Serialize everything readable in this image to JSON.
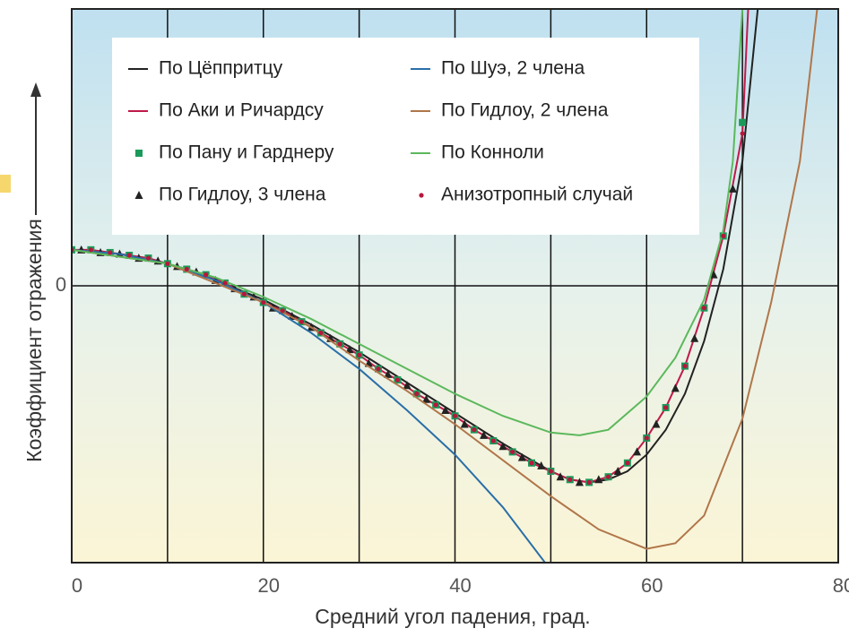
{
  "chart_data": {
    "type": "line",
    "xlabel": "Средний угол падения, град.",
    "ylabel": "Коэффициент отражения",
    "xlim": [
      0,
      80
    ],
    "xticks": [
      0,
      20,
      40,
      60,
      80
    ],
    "xgrid": [
      10,
      30,
      50,
      70
    ],
    "ylim": [
      -1,
      1
    ],
    "yticks": [
      0
    ],
    "grid": true,
    "series": [
      {
        "name": "По Цёппритцу",
        "color": "#222222",
        "marker": "line",
        "x": [
          0,
          5,
          10,
          15,
          20,
          25,
          30,
          35,
          40,
          45,
          50,
          52,
          54,
          56,
          58,
          60,
          62,
          64,
          66,
          68,
          70,
          71.6
        ],
        "values": [
          0.13,
          0.115,
          0.08,
          0.02,
          -0.05,
          -0.14,
          -0.24,
          -0.35,
          -0.46,
          -0.57,
          -0.67,
          -0.7,
          -0.71,
          -0.7,
          -0.67,
          -0.61,
          -0.52,
          -0.39,
          -0.2,
          0.06,
          0.45,
          1.0
        ]
      },
      {
        "name": "По Аки и Ричардсу",
        "color": "#c0194a",
        "marker": "line",
        "x": [
          0,
          2,
          4,
          6,
          8,
          10,
          12,
          14,
          16,
          18,
          20,
          22,
          24,
          26,
          28,
          30,
          32,
          34,
          36,
          38,
          40,
          42,
          44,
          46,
          48,
          50,
          52,
          54,
          56,
          58,
          60,
          62,
          64,
          66,
          68,
          70,
          70.6
        ],
        "values": [
          0.13,
          0.13,
          0.12,
          0.11,
          0.1,
          0.08,
          0.06,
          0.04,
          0.01,
          -0.03,
          -0.06,
          -0.09,
          -0.13,
          -0.17,
          -0.21,
          -0.25,
          -0.3,
          -0.34,
          -0.39,
          -0.43,
          -0.47,
          -0.52,
          -0.56,
          -0.6,
          -0.64,
          -0.67,
          -0.7,
          -0.71,
          -0.69,
          -0.64,
          -0.55,
          -0.44,
          -0.29,
          -0.08,
          0.18,
          0.55,
          1.0
        ]
      },
      {
        "name": "По Пану и Гарднеру",
        "color": "#1a9a5a",
        "marker": "square",
        "x": [
          0,
          2,
          4,
          6,
          8,
          10,
          12,
          14,
          16,
          18,
          20,
          22,
          24,
          26,
          28,
          30,
          32,
          34,
          36,
          38,
          40,
          42,
          44,
          46,
          48,
          50,
          52,
          54,
          56,
          58,
          60,
          62,
          64,
          66,
          68,
          70
        ],
        "values": [
          0.13,
          0.13,
          0.12,
          0.11,
          0.1,
          0.08,
          0.06,
          0.04,
          0.01,
          -0.03,
          -0.06,
          -0.09,
          -0.13,
          -0.17,
          -0.21,
          -0.25,
          -0.3,
          -0.34,
          -0.39,
          -0.43,
          -0.47,
          -0.52,
          -0.56,
          -0.6,
          -0.64,
          -0.67,
          -0.7,
          -0.71,
          -0.69,
          -0.64,
          -0.55,
          -0.44,
          -0.29,
          -0.08,
          0.18,
          0.59
        ]
      },
      {
        "name": "По Гидлоу, 3 члена",
        "color": "#222222",
        "marker": "triangle",
        "x": [
          1,
          3,
          5,
          7,
          9,
          11,
          13,
          15,
          17,
          19,
          21,
          23,
          25,
          27,
          29,
          31,
          33,
          35,
          37,
          39,
          41,
          43,
          45,
          47,
          49,
          51,
          53,
          55,
          57,
          59,
          61,
          63,
          65,
          67,
          69
        ],
        "values": [
          0.13,
          0.12,
          0.115,
          0.1,
          0.09,
          0.07,
          0.05,
          0.02,
          -0.01,
          -0.04,
          -0.08,
          -0.11,
          -0.15,
          -0.19,
          -0.23,
          -0.28,
          -0.32,
          -0.36,
          -0.41,
          -0.45,
          -0.5,
          -0.54,
          -0.58,
          -0.62,
          -0.65,
          -0.69,
          -0.71,
          -0.7,
          -0.67,
          -0.6,
          -0.5,
          -0.37,
          -0.19,
          0.04,
          0.35
        ]
      },
      {
        "name": "По Шуэ, 2 члена",
        "color": "#2a6fa8",
        "marker": "line",
        "x": [
          0,
          5,
          10,
          15,
          20,
          25,
          30,
          35,
          40,
          45,
          49.4
        ],
        "values": [
          0.13,
          0.115,
          0.08,
          0.02,
          -0.06,
          -0.17,
          -0.3,
          -0.45,
          -0.61,
          -0.8,
          -1.0
        ]
      },
      {
        "name": "По Гидлоу, 2 члена",
        "color": "#b0764a",
        "marker": "line",
        "x": [
          0,
          10,
          20,
          25,
          30,
          35,
          40,
          45,
          50,
          55,
          60,
          63,
          66,
          70,
          73,
          76,
          77.8
        ],
        "values": [
          0.13,
          0.08,
          -0.06,
          -0.15,
          -0.27,
          -0.38,
          -0.5,
          -0.63,
          -0.76,
          -0.88,
          -0.95,
          -0.93,
          -0.83,
          -0.48,
          -0.06,
          0.45,
          1.0
        ]
      },
      {
        "name": "По Конноли",
        "color": "#5cb85c",
        "marker": "line",
        "x": [
          0,
          10,
          15,
          20,
          25,
          30,
          35,
          40,
          45,
          50,
          53,
          56,
          60,
          63,
          66,
          68,
          69,
          70
        ],
        "values": [
          0.13,
          0.08,
          0.03,
          -0.04,
          -0.12,
          -0.21,
          -0.3,
          -0.39,
          -0.47,
          -0.53,
          -0.54,
          -0.52,
          -0.4,
          -0.26,
          -0.05,
          0.2,
          0.45,
          1.0
        ]
      },
      {
        "name": "Анизотропный случай",
        "color": "#b8163c",
        "marker": "dot",
        "x": [
          0,
          2,
          4,
          6,
          8,
          10,
          12,
          14,
          16,
          18,
          20,
          22,
          24,
          26,
          28,
          30,
          32,
          34,
          36,
          38,
          40,
          42,
          44,
          46,
          48,
          50,
          52,
          54,
          56,
          58,
          60,
          62,
          64,
          66,
          68,
          70
        ],
        "values": [
          0.13,
          0.13,
          0.12,
          0.11,
          0.1,
          0.08,
          0.06,
          0.04,
          0.01,
          -0.03,
          -0.06,
          -0.09,
          -0.13,
          -0.17,
          -0.21,
          -0.25,
          -0.3,
          -0.34,
          -0.39,
          -0.43,
          -0.47,
          -0.52,
          -0.56,
          -0.6,
          -0.64,
          -0.67,
          -0.7,
          -0.71,
          -0.69,
          -0.64,
          -0.55,
          -0.44,
          -0.29,
          -0.08,
          0.18,
          0.55
        ]
      }
    ]
  }
}
